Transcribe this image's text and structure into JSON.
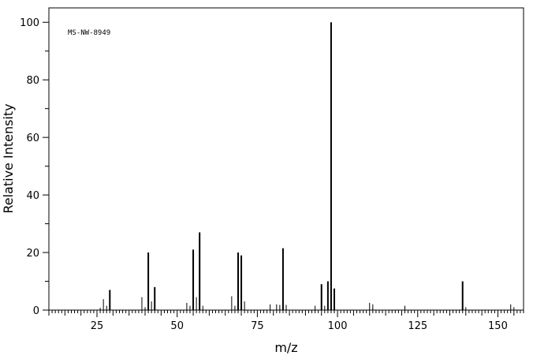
{
  "chart_data": {
    "type": "bar",
    "title": "",
    "annotation": "MS-NW-8949",
    "xlabel": "m/z",
    "ylabel": "Relative Intensity",
    "xlim": [
      10,
      158
    ],
    "ylim": [
      0,
      105
    ],
    "x_major_ticks": [
      25,
      50,
      75,
      100,
      125,
      150
    ],
    "y_major_ticks": [
      0,
      20,
      40,
      60,
      80,
      100
    ],
    "grid": false,
    "peaks": [
      {
        "mz": 26,
        "intensity": 0.8
      },
      {
        "mz": 27,
        "intensity": 3.8
      },
      {
        "mz": 28,
        "intensity": 1.5
      },
      {
        "mz": 29,
        "intensity": 7.0
      },
      {
        "mz": 39,
        "intensity": 4.5
      },
      {
        "mz": 40,
        "intensity": 1.0
      },
      {
        "mz": 41,
        "intensity": 20.0
      },
      {
        "mz": 42,
        "intensity": 3.0
      },
      {
        "mz": 43,
        "intensity": 8.0
      },
      {
        "mz": 53,
        "intensity": 2.5
      },
      {
        "mz": 54,
        "intensity": 1.5
      },
      {
        "mz": 55,
        "intensity": 21.0
      },
      {
        "mz": 56,
        "intensity": 4.5
      },
      {
        "mz": 57,
        "intensity": 27.0
      },
      {
        "mz": 58,
        "intensity": 1.5
      },
      {
        "mz": 67,
        "intensity": 4.8
      },
      {
        "mz": 68,
        "intensity": 1.5
      },
      {
        "mz": 69,
        "intensity": 20.0
      },
      {
        "mz": 70,
        "intensity": 19.0
      },
      {
        "mz": 71,
        "intensity": 3.0
      },
      {
        "mz": 79,
        "intensity": 2.0
      },
      {
        "mz": 81,
        "intensity": 2.0
      },
      {
        "mz": 82,
        "intensity": 1.8
      },
      {
        "mz": 83,
        "intensity": 21.5
      },
      {
        "mz": 84,
        "intensity": 1.8
      },
      {
        "mz": 93,
        "intensity": 1.5
      },
      {
        "mz": 95,
        "intensity": 9.0
      },
      {
        "mz": 96,
        "intensity": 1.5
      },
      {
        "mz": 97,
        "intensity": 10.0
      },
      {
        "mz": 98,
        "intensity": 100.0
      },
      {
        "mz": 99,
        "intensity": 7.5
      },
      {
        "mz": 110,
        "intensity": 2.5
      },
      {
        "mz": 111,
        "intensity": 2.0
      },
      {
        "mz": 121,
        "intensity": 1.5
      },
      {
        "mz": 139,
        "intensity": 10.0
      },
      {
        "mz": 140,
        "intensity": 1.0
      },
      {
        "mz": 154,
        "intensity": 2.0
      },
      {
        "mz": 155,
        "intensity": 1.0
      }
    ]
  }
}
